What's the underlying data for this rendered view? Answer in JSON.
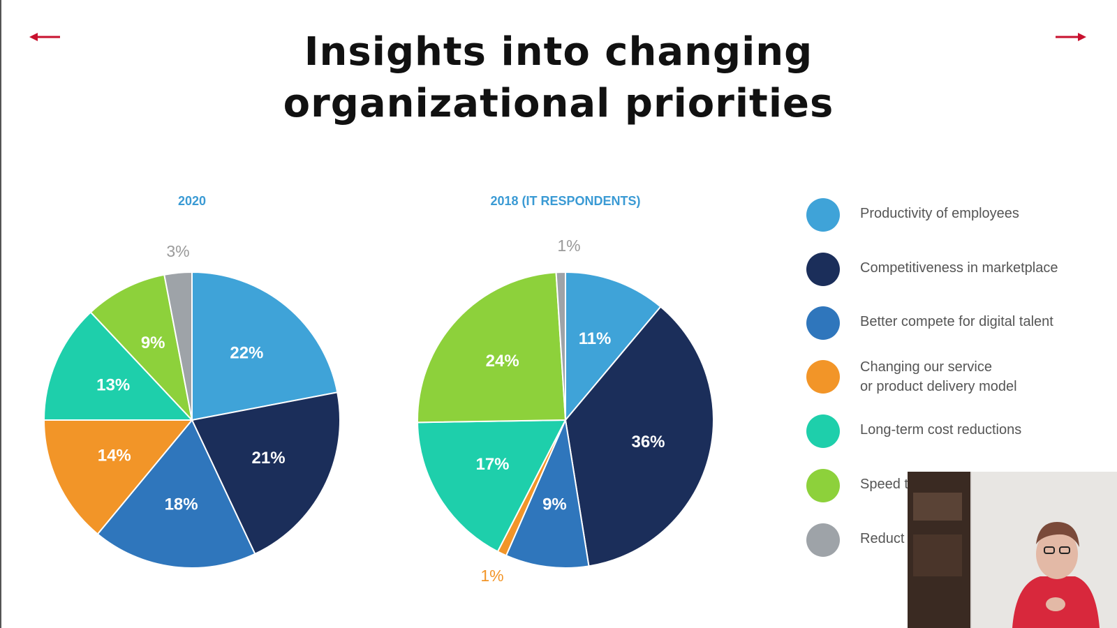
{
  "slide": {
    "title_line1": "Insights into changing",
    "title_line2": "organizational priorities"
  },
  "nav": {
    "prev_icon": "arrow-left-icon",
    "next_icon": "arrow-right-icon",
    "arrow_color": "#c8102e"
  },
  "chart_data": [
    {
      "type": "pie",
      "title": "2020",
      "slices": [
        {
          "category": "Productivity of employees",
          "value": 22,
          "label": "22%",
          "color": "#3fa3d8"
        },
        {
          "category": "Competitiveness in marketplace",
          "value": 21,
          "label": "21%",
          "color": "#1b2e5a"
        },
        {
          "category": "Better compete for digital talent",
          "value": 18,
          "label": "18%",
          "color": "#2f76bc"
        },
        {
          "category": "Changing our service or product delivery model",
          "value": 14,
          "label": "14%",
          "color": "#f29528"
        },
        {
          "category": "Long-term cost reductions",
          "value": 13,
          "label": "13%",
          "color": "#1ecfab"
        },
        {
          "category": "Speed to market",
          "value": 9,
          "label": "9%",
          "color": "#8dd13b"
        },
        {
          "category": "Reduction",
          "value": 3,
          "label": "3%",
          "color": "#9ea3a8"
        }
      ]
    },
    {
      "type": "pie",
      "title": "2018 (IT RESPONDENTS)",
      "slices": [
        {
          "category": "Productivity of employees",
          "value": 11,
          "label": "11%",
          "color": "#3fa3d8"
        },
        {
          "category": "Competitiveness in marketplace",
          "value": 36,
          "label": "36%",
          "color": "#1b2e5a"
        },
        {
          "category": "Better compete for digital talent",
          "value": 9,
          "label": "9%",
          "color": "#2f76bc"
        },
        {
          "category": "Changing our service or product delivery model",
          "value": 1,
          "label": "1%",
          "color": "#f29528"
        },
        {
          "category": "Long-term cost reductions",
          "value": 17,
          "label": "17%",
          "color": "#1ecfab"
        },
        {
          "category": "Speed to market",
          "value": 24,
          "label": "24%",
          "color": "#8dd13b"
        },
        {
          "category": "Reduction",
          "value": 1,
          "label": "1%",
          "color": "#9ea3a8"
        }
      ]
    }
  ],
  "legend": {
    "items": [
      {
        "label": "Productivity of employees",
        "color": "#3fa3d8"
      },
      {
        "label": "Competitiveness in marketplace",
        "color": "#1b2e5a"
      },
      {
        "label": "Better compete for digital talent",
        "color": "#2f76bc"
      },
      {
        "label": "Changing our service\nor product delivery model",
        "color": "#f29528"
      },
      {
        "label": "Long-term cost reductions",
        "color": "#1ecfab"
      },
      {
        "label": "Speed t",
        "color": "#8dd13b"
      },
      {
        "label": "Reduct",
        "color": "#9ea3a8"
      }
    ]
  }
}
